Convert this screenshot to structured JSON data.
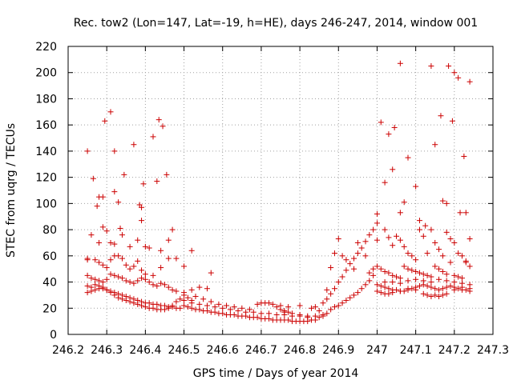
{
  "chart_data": {
    "type": "scatter",
    "title": "Rec. tow2 (Lon=147, Lat=-19, h=HE), days 246-247, 2014, window 001",
    "xlabel": "GPS time / Days of year 2014",
    "ylabel": "STEC from uqrg / TECUs",
    "xlim": [
      246.2,
      247.3
    ],
    "ylim": [
      0,
      220
    ],
    "xticks": [
      246.2,
      246.3,
      246.4,
      246.5,
      246.6,
      246.7,
      246.8,
      246.9,
      247,
      247.1,
      247.2,
      247.3
    ],
    "xtick_labels": [
      "246.2",
      "246.3",
      "246.4",
      "246.5",
      "246.6",
      "246.7",
      "246.8",
      "246.9",
      "247",
      "247.1",
      "247.2",
      "247.3"
    ],
    "yticks": [
      0,
      20,
      40,
      60,
      80,
      100,
      120,
      140,
      160,
      180,
      200,
      220
    ],
    "ytick_labels": [
      "0",
      "20",
      "40",
      "60",
      "80",
      "100",
      "120",
      "140",
      "160",
      "180",
      "200",
      "220"
    ],
    "grid": true,
    "marker": "+",
    "color": "#cc0000",
    "points": [
      [
        246.25,
        140
      ],
      [
        246.265,
        119
      ],
      [
        246.275,
        98
      ],
      [
        246.28,
        105
      ],
      [
        246.29,
        105
      ],
      [
        246.295,
        163
      ],
      [
        246.31,
        170
      ],
      [
        246.32,
        140
      ],
      [
        246.32,
        109
      ],
      [
        246.33,
        101
      ],
      [
        246.345,
        122
      ],
      [
        246.37,
        145
      ],
      [
        246.385,
        99
      ],
      [
        246.39,
        97
      ],
      [
        246.395,
        115
      ],
      [
        246.42,
        151
      ],
      [
        246.43,
        117
      ],
      [
        246.435,
        164
      ],
      [
        246.445,
        159
      ],
      [
        246.455,
        122
      ],
      [
        246.25,
        58
      ],
      [
        246.26,
        76
      ],
      [
        246.28,
        70
      ],
      [
        246.29,
        82
      ],
      [
        246.3,
        79
      ],
      [
        246.31,
        70
      ],
      [
        246.32,
        69
      ],
      [
        246.335,
        81
      ],
      [
        246.34,
        76
      ],
      [
        246.36,
        67
      ],
      [
        246.38,
        72
      ],
      [
        246.39,
        87
      ],
      [
        246.4,
        67
      ],
      [
        246.41,
        66
      ],
      [
        246.44,
        64
      ],
      [
        246.46,
        72
      ],
      [
        246.47,
        80
      ],
      [
        246.48,
        58
      ],
      [
        246.5,
        52
      ],
      [
        246.52,
        64
      ],
      [
        246.25,
        57
      ],
      [
        246.27,
        57
      ],
      [
        246.28,
        55
      ],
      [
        246.29,
        53
      ],
      [
        246.3,
        51
      ],
      [
        246.31,
        57
      ],
      [
        246.32,
        60
      ],
      [
        246.33,
        60
      ],
      [
        246.34,
        58
      ],
      [
        246.35,
        53
      ],
      [
        246.36,
        50
      ],
      [
        246.37,
        52
      ],
      [
        246.38,
        56
      ],
      [
        246.39,
        49
      ],
      [
        246.4,
        46
      ],
      [
        246.42,
        45
      ],
      [
        246.44,
        51
      ],
      [
        246.46,
        58
      ],
      [
        246.25,
        45
      ],
      [
        246.26,
        43
      ],
      [
        246.27,
        42
      ],
      [
        246.28,
        41
      ],
      [
        246.29,
        40
      ],
      [
        246.3,
        42
      ],
      [
        246.31,
        46
      ],
      [
        246.32,
        45
      ],
      [
        246.33,
        44
      ],
      [
        246.34,
        43
      ],
      [
        246.35,
        41
      ],
      [
        246.36,
        40
      ],
      [
        246.37,
        39
      ],
      [
        246.38,
        41
      ],
      [
        246.39,
        43
      ],
      [
        246.4,
        42
      ],
      [
        246.41,
        40
      ],
      [
        246.42,
        38
      ],
      [
        246.43,
        37
      ],
      [
        246.44,
        39
      ],
      [
        246.45,
        38
      ],
      [
        246.46,
        36
      ],
      [
        246.47,
        34
      ],
      [
        246.48,
        33
      ],
      [
        246.5,
        32
      ],
      [
        246.52,
        34
      ],
      [
        246.54,
        36
      ],
      [
        246.56,
        35
      ],
      [
        246.57,
        47
      ],
      [
        246.25,
        37
      ],
      [
        246.26,
        36
      ],
      [
        246.27,
        38
      ],
      [
        246.28,
        37
      ],
      [
        246.29,
        35
      ],
      [
        246.3,
        34
      ],
      [
        246.31,
        33
      ],
      [
        246.32,
        32
      ],
      [
        246.33,
        31
      ],
      [
        246.34,
        30
      ],
      [
        246.35,
        29
      ],
      [
        246.36,
        28
      ],
      [
        246.37,
        27
      ],
      [
        246.38,
        26
      ],
      [
        246.39,
        25
      ],
      [
        246.4,
        24
      ],
      [
        246.41,
        24
      ],
      [
        246.42,
        23
      ],
      [
        246.43,
        23
      ],
      [
        246.44,
        22
      ],
      [
        246.45,
        22
      ],
      [
        246.46,
        21
      ],
      [
        246.47,
        21
      ],
      [
        246.48,
        20
      ],
      [
        246.49,
        20
      ],
      [
        246.25,
        32
      ],
      [
        246.26,
        33
      ],
      [
        246.27,
        34
      ],
      [
        246.28,
        35
      ],
      [
        246.29,
        36
      ],
      [
        246.3,
        34
      ],
      [
        246.31,
        32
      ],
      [
        246.32,
        30
      ],
      [
        246.33,
        28
      ],
      [
        246.34,
        27
      ],
      [
        246.35,
        26
      ],
      [
        246.36,
        25
      ],
      [
        246.37,
        24
      ],
      [
        246.38,
        23
      ],
      [
        246.39,
        22
      ],
      [
        246.4,
        21
      ],
      [
        246.41,
        20
      ],
      [
        246.42,
        20
      ],
      [
        246.43,
        19
      ],
      [
        246.44,
        19
      ],
      [
        246.45,
        19
      ],
      [
        246.46,
        20
      ],
      [
        246.47,
        22
      ],
      [
        246.48,
        25
      ],
      [
        246.49,
        27
      ],
      [
        246.5,
        30
      ],
      [
        246.51,
        28
      ],
      [
        246.52,
        26
      ],
      [
        246.5,
        22
      ],
      [
        246.51,
        21
      ],
      [
        246.52,
        20
      ],
      [
        246.53,
        19
      ],
      [
        246.54,
        19
      ],
      [
        246.55,
        18
      ],
      [
        246.56,
        18
      ],
      [
        246.57,
        17
      ],
      [
        246.58,
        17
      ],
      [
        246.59,
        16
      ],
      [
        246.6,
        16
      ],
      [
        246.61,
        15
      ],
      [
        246.62,
        15
      ],
      [
        246.63,
        15
      ],
      [
        246.64,
        14
      ],
      [
        246.65,
        14
      ],
      [
        246.66,
        14
      ],
      [
        246.67,
        13
      ],
      [
        246.68,
        13
      ],
      [
        246.69,
        13
      ],
      [
        246.5,
        26
      ],
      [
        246.52,
        24
      ],
      [
        246.54,
        23
      ],
      [
        246.56,
        22
      ],
      [
        246.58,
        21
      ],
      [
        246.6,
        20
      ],
      [
        246.62,
        19
      ],
      [
        246.64,
        18
      ],
      [
        246.66,
        17
      ],
      [
        246.68,
        17
      ],
      [
        246.7,
        16
      ],
      [
        246.72,
        16
      ],
      [
        246.74,
        15
      ],
      [
        246.76,
        15
      ],
      [
        246.78,
        14
      ],
      [
        246.8,
        14
      ],
      [
        246.82,
        13
      ],
      [
        246.53,
        29
      ],
      [
        246.55,
        27
      ],
      [
        246.57,
        25
      ],
      [
        246.59,
        23
      ],
      [
        246.61,
        22
      ],
      [
        246.63,
        21
      ],
      [
        246.65,
        20
      ],
      [
        246.67,
        19
      ],
      [
        246.69,
        23
      ],
      [
        246.7,
        24
      ],
      [
        246.71,
        24
      ],
      [
        246.72,
        24
      ],
      [
        246.73,
        23
      ],
      [
        246.74,
        21
      ],
      [
        246.75,
        19
      ],
      [
        246.76,
        18
      ],
      [
        246.77,
        17
      ],
      [
        246.7,
        12
      ],
      [
        246.71,
        12
      ],
      [
        246.72,
        12
      ],
      [
        246.73,
        11
      ],
      [
        246.74,
        11
      ],
      [
        246.75,
        11
      ],
      [
        246.76,
        11
      ],
      [
        246.77,
        11
      ],
      [
        246.78,
        10
      ],
      [
        246.79,
        10
      ],
      [
        246.8,
        10
      ],
      [
        246.81,
        10
      ],
      [
        246.82,
        10
      ],
      [
        246.83,
        11
      ],
      [
        246.84,
        11
      ],
      [
        246.76,
        17
      ],
      [
        246.78,
        16
      ],
      [
        246.8,
        15
      ],
      [
        246.82,
        14
      ],
      [
        246.84,
        14
      ],
      [
        246.86,
        15
      ],
      [
        246.85,
        18
      ],
      [
        246.84,
        21
      ],
      [
        246.83,
        20
      ],
      [
        246.8,
        22
      ],
      [
        246.77,
        21
      ],
      [
        246.75,
        22
      ],
      [
        246.85,
        13
      ],
      [
        246.86,
        14
      ],
      [
        246.87,
        16
      ],
      [
        246.88,
        19
      ],
      [
        246.89,
        21
      ],
      [
        246.9,
        22
      ],
      [
        246.91,
        24
      ],
      [
        246.92,
        26
      ],
      [
        246.93,
        28
      ],
      [
        246.94,
        30
      ],
      [
        246.95,
        32
      ],
      [
        246.96,
        35
      ],
      [
        246.97,
        38
      ],
      [
        246.98,
        41
      ],
      [
        246.99,
        45
      ],
      [
        246.86,
        24
      ],
      [
        246.87,
        27
      ],
      [
        246.88,
        31
      ],
      [
        246.89,
        35
      ],
      [
        246.9,
        40
      ],
      [
        246.91,
        44
      ],
      [
        246.92,
        49
      ],
      [
        246.93,
        54
      ],
      [
        246.94,
        58
      ],
      [
        246.95,
        62
      ],
      [
        246.96,
        66
      ],
      [
        246.97,
        71
      ],
      [
        246.98,
        76
      ],
      [
        246.99,
        80
      ],
      [
        247.0,
        85
      ],
      [
        246.87,
        34
      ],
      [
        246.88,
        51
      ],
      [
        246.89,
        62
      ],
      [
        246.9,
        73
      ],
      [
        246.91,
        60
      ],
      [
        246.92,
        57
      ],
      [
        246.94,
        50
      ],
      [
        246.95,
        70
      ],
      [
        246.97,
        60
      ],
      [
        246.98,
        47
      ],
      [
        246.99,
        50
      ],
      [
        247.0,
        92
      ],
      [
        247.01,
        162
      ],
      [
        247.02,
        116
      ],
      [
        247.03,
        153
      ],
      [
        247.04,
        126
      ],
      [
        247.045,
        158
      ],
      [
        247.06,
        207
      ],
      [
        247.06,
        93
      ],
      [
        247.07,
        101
      ],
      [
        247.08,
        135
      ],
      [
        247.1,
        113
      ],
      [
        247.11,
        87
      ],
      [
        247.125,
        83
      ],
      [
        247.14,
        205
      ],
      [
        247.15,
        145
      ],
      [
        247.165,
        167
      ],
      [
        247.17,
        102
      ],
      [
        247.18,
        100
      ],
      [
        247.185,
        205
      ],
      [
        247.195,
        163
      ],
      [
        247.2,
        200
      ],
      [
        247.21,
        196
      ],
      [
        247.215,
        93
      ],
      [
        247.225,
        136
      ],
      [
        247.23,
        93
      ],
      [
        247.24,
        193
      ],
      [
        247.0,
        72
      ],
      [
        247.02,
        80
      ],
      [
        247.03,
        74
      ],
      [
        247.04,
        68
      ],
      [
        247.05,
        75
      ],
      [
        247.06,
        72
      ],
      [
        247.07,
        67
      ],
      [
        247.08,
        62
      ],
      [
        247.09,
        60
      ],
      [
        247.1,
        57
      ],
      [
        247.11,
        80
      ],
      [
        247.12,
        75
      ],
      [
        247.13,
        62
      ],
      [
        247.14,
        80
      ],
      [
        247.15,
        70
      ],
      [
        247.16,
        65
      ],
      [
        247.17,
        60
      ],
      [
        247.18,
        78
      ],
      [
        247.19,
        73
      ],
      [
        247.2,
        70
      ],
      [
        247.21,
        62
      ],
      [
        247.22,
        60
      ],
      [
        247.23,
        56
      ],
      [
        247.24,
        73
      ],
      [
        247.0,
        52
      ],
      [
        247.01,
        50
      ],
      [
        247.02,
        48
      ],
      [
        247.03,
        47
      ],
      [
        247.04,
        45
      ],
      [
        247.05,
        44
      ],
      [
        247.06,
        43
      ],
      [
        247.07,
        52
      ],
      [
        247.08,
        50
      ],
      [
        247.09,
        49
      ],
      [
        247.1,
        48
      ],
      [
        247.11,
        47
      ],
      [
        247.12,
        46
      ],
      [
        247.13,
        45
      ],
      [
        247.14,
        44
      ],
      [
        247.15,
        52
      ],
      [
        247.16,
        50
      ],
      [
        247.17,
        48
      ],
      [
        247.18,
        46
      ],
      [
        247.19,
        55
      ],
      [
        247.2,
        45
      ],
      [
        247.21,
        44
      ],
      [
        247.22,
        43
      ],
      [
        247.23,
        55
      ],
      [
        247.24,
        52
      ],
      [
        247.0,
        38
      ],
      [
        247.01,
        37
      ],
      [
        247.02,
        36
      ],
      [
        247.03,
        35
      ],
      [
        247.04,
        34
      ],
      [
        247.05,
        34
      ],
      [
        247.06,
        33
      ],
      [
        247.07,
        33
      ],
      [
        247.08,
        34
      ],
      [
        247.09,
        35
      ],
      [
        247.1,
        36
      ],
      [
        247.11,
        37
      ],
      [
        247.12,
        38
      ],
      [
        247.13,
        37
      ],
      [
        247.14,
        36
      ],
      [
        247.15,
        35
      ],
      [
        247.16,
        34
      ],
      [
        247.17,
        35
      ],
      [
        247.18,
        36
      ],
      [
        247.19,
        37
      ],
      [
        247.2,
        36
      ],
      [
        247.21,
        35
      ],
      [
        247.22,
        34
      ],
      [
        247.23,
        34
      ],
      [
        247.24,
        33
      ],
      [
        247.0,
        33
      ],
      [
        247.01,
        32
      ],
      [
        247.02,
        31
      ],
      [
        247.03,
        31
      ],
      [
        247.04,
        32
      ],
      [
        247.06,
        33
      ],
      [
        247.08,
        35
      ],
      [
        247.1,
        34
      ],
      [
        247.12,
        31
      ],
      [
        247.13,
        30
      ],
      [
        247.14,
        29
      ],
      [
        247.15,
        30
      ],
      [
        247.16,
        29
      ],
      [
        247.17,
        30
      ],
      [
        247.18,
        31
      ],
      [
        247.2,
        34
      ],
      [
        247.22,
        36
      ],
      [
        247.24,
        35
      ],
      [
        247.02,
        40
      ],
      [
        247.04,
        40
      ],
      [
        247.06,
        39
      ],
      [
        247.08,
        41
      ],
      [
        247.1,
        42
      ],
      [
        247.12,
        41
      ],
      [
        247.14,
        40
      ],
      [
        247.16,
        42
      ],
      [
        247.18,
        41
      ],
      [
        247.2,
        40
      ],
      [
        247.22,
        39
      ],
      [
        247.24,
        38
      ]
    ]
  }
}
